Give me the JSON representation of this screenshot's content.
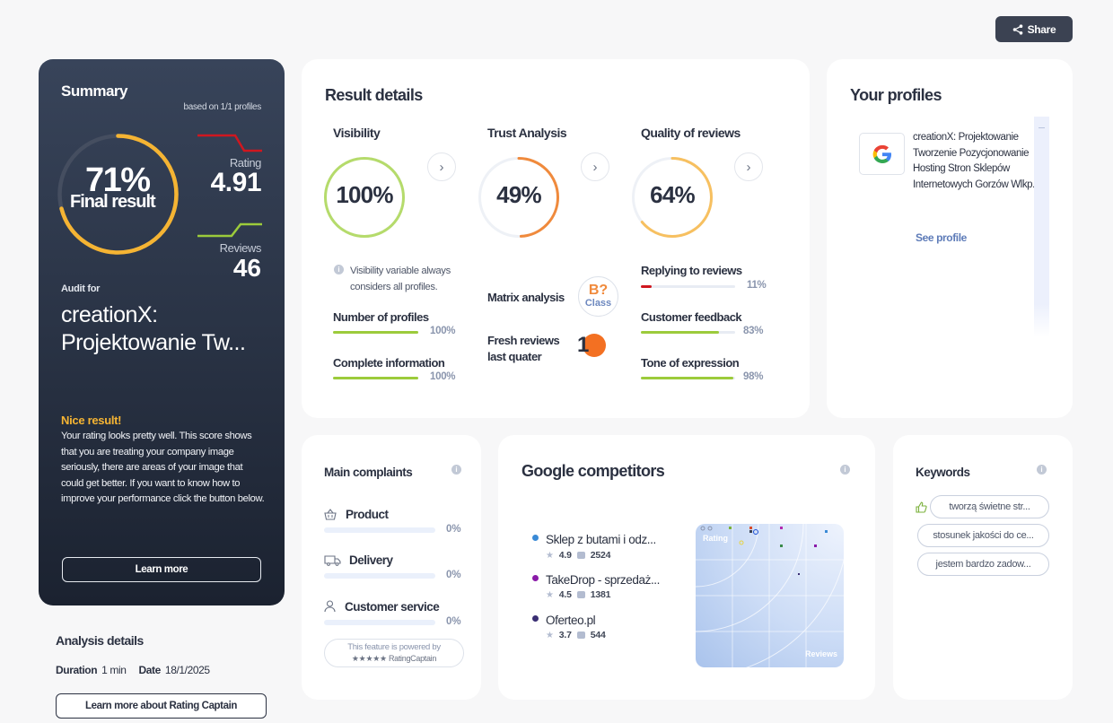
{
  "share": {
    "label": "Share"
  },
  "summary": {
    "title": "Summary",
    "based_on": "based on 1/1 profiles",
    "final_percent": "71%",
    "final_label": "Final result",
    "final_value": 0.71,
    "rating_label": "Rating",
    "rating_value": "4.91",
    "reviews_label": "Reviews",
    "reviews_value": "46",
    "audit_for": "Audit for",
    "audit_name": "creationX: Projektowanie Tw...",
    "nice_title": "Nice result!",
    "nice_text": "Your rating looks pretty well. This score shows that you are treating your company image seriously, there are areas of your image that could get better. If you want to know how to improve your performance click the button below.",
    "learn_more": "Learn more",
    "colors": {
      "ring": "#f5b433",
      "rating_trend": "#d0171f",
      "reviews_trend": "#9ccb3b"
    }
  },
  "analysis_details": {
    "title": "Analysis details",
    "duration_label": "Duration",
    "duration_value": "1 min",
    "date_label": "Date",
    "date_value": "18/1/2025",
    "button": "Learn more about Rating Captain"
  },
  "result_details": {
    "title": "Result details",
    "visibility": {
      "title": "Visibility",
      "percent": "100%",
      "value": 1.0,
      "color": "#b5db6b"
    },
    "trust": {
      "title": "Trust Analysis",
      "percent": "49%",
      "value": 0.49,
      "color": "#f08a3c"
    },
    "quality": {
      "title": "Quality of reviews",
      "percent": "64%",
      "value": 0.64,
      "color": "#f7c060"
    },
    "visibility_note": "Visibility variable always considers all profiles.",
    "number_of_profiles": {
      "label": "Number of profiles",
      "value": "100%",
      "fill": 1.0
    },
    "complete_information": {
      "label": "Complete information",
      "value": "100%",
      "fill": 1.0
    },
    "matrix_analysis": {
      "label": "Matrix analysis",
      "grade": "B?",
      "class_label": "Class"
    },
    "fresh_reviews": {
      "label": "Fresh reviews last quater",
      "value": "1"
    },
    "replying": {
      "label": "Replying to reviews",
      "value": "11%",
      "fill": 0.11,
      "color": "#d0171f"
    },
    "customer_feedback": {
      "label": "Customer feedback",
      "value": "83%",
      "fill": 0.83,
      "color": "#9ccb3b"
    },
    "tone": {
      "label": "Tone of expression",
      "value": "98%",
      "fill": 0.98,
      "color": "#9ccb3b"
    }
  },
  "your_profiles": {
    "title": "Your profiles",
    "profile_name": "creationX: Projektowanie Tworzenie Pozycjonowanie Hosting Stron Sklepów Internetowych Gorzów Wlkp.",
    "see_profile": "See profile"
  },
  "main_complaints": {
    "title": "Main complaints",
    "items": [
      {
        "label": "Product",
        "value": "0%"
      },
      {
        "label": "Delivery",
        "value": "0%"
      },
      {
        "label": "Customer service",
        "value": "0%"
      }
    ],
    "powered_line1": "This feature is powered by",
    "powered_line2": "RatingCaptain"
  },
  "google_competitors": {
    "title": "Google competitors",
    "competitors": [
      {
        "name": "Sklep z butami i odz...",
        "rating": "4.9",
        "reviews": "2524",
        "color": "#3a8ad6"
      },
      {
        "name": "TakeDrop - sprzedaż...",
        "rating": "4.5",
        "reviews": "1381",
        "color": "#8a1aa8"
      },
      {
        "name": "Oferteo.pl",
        "rating": "3.7",
        "reviews": "544",
        "color": "#3a2e73"
      }
    ],
    "plot_rating_label": "Rating",
    "plot_reviews_label": "Reviews"
  },
  "keywords": {
    "title": "Keywords",
    "items": [
      "tworzą świetne str...",
      "stosunek jakości do ce...",
      "jestem bardzo zadow..."
    ]
  }
}
